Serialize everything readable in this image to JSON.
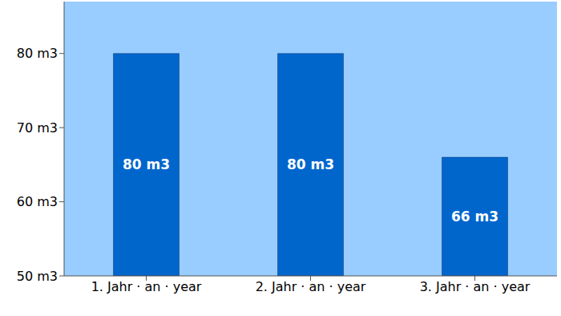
{
  "chart_data": {
    "type": "bar",
    "categories": [
      "1. Jahr · an · year",
      "2. Jahr · an · year",
      "3. Jahr · an · year"
    ],
    "values": [
      80,
      80,
      66
    ],
    "value_labels": [
      "80 m3",
      "80 m3",
      "66 m3"
    ],
    "color": "#0066cc",
    "ylim": [
      50,
      87
    ],
    "yticks": [
      {
        "value": 50,
        "label": "50 m3"
      },
      {
        "value": 60,
        "label": "60 m3"
      },
      {
        "value": 70,
        "label": "70 m3"
      },
      {
        "value": 80,
        "label": "80 m3"
      }
    ],
    "grid": false,
    "data_labels": true
  }
}
